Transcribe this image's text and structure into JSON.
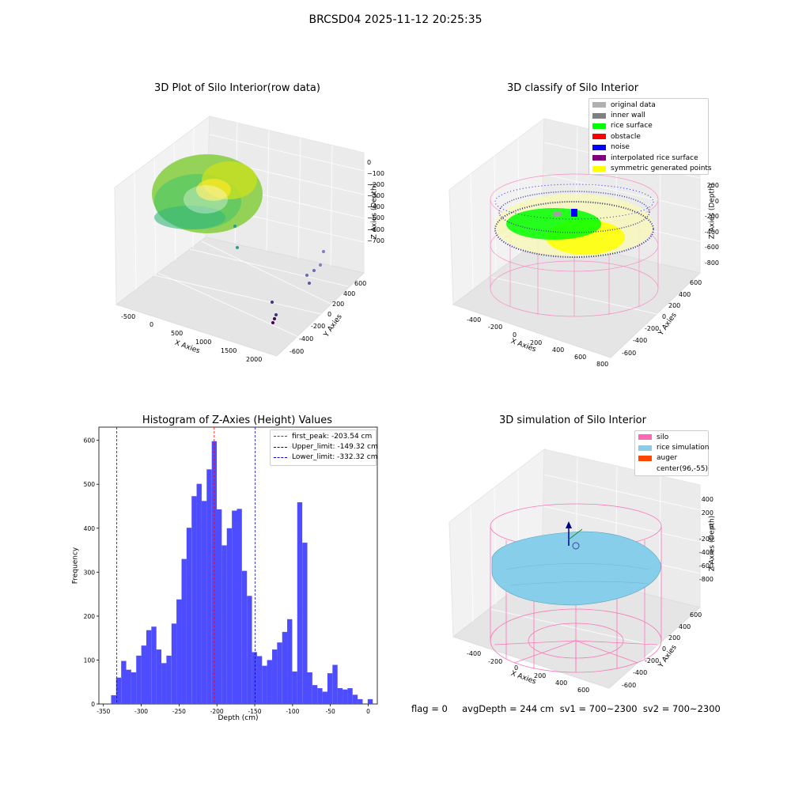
{
  "figure": {
    "title": "BRCSD04 2025-11-12 20:25:35",
    "status_text": "flag = 0     avgDepth = 244 cm  sv1 = 700~2300  sv2 = 700~2300"
  },
  "icons": [
    "legend-swatch"
  ],
  "colors": {
    "hist_bar": "#4d4dff",
    "peak_line": "#ff0000",
    "limit_line": "#0000cc",
    "silo": "#ff69b4",
    "rice": "#87ceeb",
    "auger": "#ff4500"
  },
  "chart_data": [
    {
      "type": "scatter",
      "title": "3D Plot of Silo Interior(row data)",
      "xlabel": "X Axies",
      "ylabel": "Y Axies",
      "zlabel": "Z Axies (Depth)",
      "xticks": [
        "-500",
        "0",
        "500",
        "1000",
        "1500",
        "2000"
      ],
      "yticks": [
        "-600",
        "-400",
        "-200",
        "0",
        "200",
        "400",
        "600"
      ],
      "zticks": [
        "0",
        "−100",
        "−200",
        "−300",
        "−400",
        "−500",
        "−600",
        "−700"
      ],
      "grid": true
    },
    {
      "type": "scatter",
      "title": "3D classify of Silo Interior",
      "xlabel": "X Axies",
      "ylabel": "Y Axies",
      "zlabel": "Z Axies (Depth)",
      "xticks": [
        "-400",
        "-200",
        "0",
        "200",
        "400",
        "600",
        "800"
      ],
      "yticks": [
        "-600",
        "-400",
        "-200",
        "0",
        "200",
        "400",
        "600"
      ],
      "zticks": [
        "200",
        "0",
        "-200",
        "-400",
        "-600",
        "-800"
      ],
      "legend": [
        {
          "label": "original data",
          "color": "#b0b0b0"
        },
        {
          "label": "inner wall",
          "color": "#808080"
        },
        {
          "label": "rice surface",
          "color": "#00ff00"
        },
        {
          "label": "obstacle",
          "color": "#ff0000"
        },
        {
          "label": "noise",
          "color": "#0000ff"
        },
        {
          "label": "interpolated rice surface",
          "color": "#800080"
        },
        {
          "label": "symmetric generated points",
          "color": "#ffff00"
        }
      ],
      "legend_placement": "top-right",
      "grid": true
    },
    {
      "type": "bar",
      "title": "Histogram of Z-Axies (Height) Values",
      "xlabel": "Depth (cm)",
      "ylabel": "Frequency",
      "xlim": [
        -356,
        12
      ],
      "ylim": [
        0,
        630
      ],
      "xticks": [
        -350,
        -300,
        -250,
        -200,
        -150,
        -100,
        -50,
        0
      ],
      "yticks": [
        0,
        100,
        200,
        300,
        400,
        500,
        600
      ],
      "bin_width": 6.65,
      "bins": [
        {
          "x": -336.5,
          "v": 20
        },
        {
          "x": -329.9,
          "v": 60
        },
        {
          "x": -323.2,
          "v": 98
        },
        {
          "x": -316.6,
          "v": 78
        },
        {
          "x": -309.9,
          "v": 72
        },
        {
          "x": -303.3,
          "v": 110
        },
        {
          "x": -296.6,
          "v": 133
        },
        {
          "x": -290.0,
          "v": 168
        },
        {
          "x": -283.3,
          "v": 176
        },
        {
          "x": -276.7,
          "v": 124
        },
        {
          "x": -270.0,
          "v": 93
        },
        {
          "x": -263.4,
          "v": 110
        },
        {
          "x": -256.7,
          "v": 183
        },
        {
          "x": -250.1,
          "v": 238
        },
        {
          "x": -243.4,
          "v": 330
        },
        {
          "x": -236.8,
          "v": 401
        },
        {
          "x": -230.1,
          "v": 473
        },
        {
          "x": -223.5,
          "v": 501
        },
        {
          "x": -216.8,
          "v": 462
        },
        {
          "x": -210.2,
          "v": 534
        },
        {
          "x": -203.5,
          "v": 598
        },
        {
          "x": -196.9,
          "v": 443
        },
        {
          "x": -190.2,
          "v": 361
        },
        {
          "x": -183.6,
          "v": 400
        },
        {
          "x": -176.9,
          "v": 440
        },
        {
          "x": -170.3,
          "v": 444
        },
        {
          "x": -163.6,
          "v": 303
        },
        {
          "x": -157.0,
          "v": 246
        },
        {
          "x": -150.3,
          "v": 118
        },
        {
          "x": -143.7,
          "v": 109
        },
        {
          "x": -137.0,
          "v": 87
        },
        {
          "x": -130.4,
          "v": 100
        },
        {
          "x": -123.7,
          "v": 124
        },
        {
          "x": -117.1,
          "v": 140
        },
        {
          "x": -110.4,
          "v": 164
        },
        {
          "x": -103.8,
          "v": 193
        },
        {
          "x": -97.1,
          "v": 74
        },
        {
          "x": -90.5,
          "v": 459
        },
        {
          "x": -83.8,
          "v": 367
        },
        {
          "x": -77.2,
          "v": 72
        },
        {
          "x": -70.5,
          "v": 43
        },
        {
          "x": -63.9,
          "v": 36
        },
        {
          "x": -57.2,
          "v": 28
        },
        {
          "x": -50.6,
          "v": 70
        },
        {
          "x": -43.9,
          "v": 89
        },
        {
          "x": -37.3,
          "v": 36
        },
        {
          "x": -30.6,
          "v": 33
        },
        {
          "x": -24.0,
          "v": 36
        },
        {
          "x": -17.3,
          "v": 21
        },
        {
          "x": -10.7,
          "v": 11
        },
        {
          "x": -4.0,
          "v": 0
        },
        {
          "x": 2.6,
          "v": 11
        }
      ],
      "vlines": [
        {
          "x": -203.54,
          "label": "first_peak: -203.54 cm",
          "color": "#ff0000"
        },
        {
          "x": -149.32,
          "label": "Upper_limit: -149.32 cm",
          "color": "#0000cc"
        },
        {
          "x": -332.32,
          "label": "Lower_limit: -332.32 cm",
          "color": "#0000cc"
        }
      ],
      "legend_placement": "top-right"
    },
    {
      "type": "scatter",
      "title": "3D simulation of Silo Interior",
      "xlabel": "X Axies",
      "ylabel": "Y Axies",
      "zlabel": "Z Axies (Depth)",
      "xticks": [
        "-400",
        "-200",
        "0",
        "200",
        "400",
        "600"
      ],
      "yticks": [
        "-600",
        "-400",
        "-200",
        "0",
        "200",
        "400",
        "600"
      ],
      "zticks": [
        "400",
        "200",
        "0",
        "-200",
        "-400",
        "-600",
        "-800"
      ],
      "legend": [
        {
          "label": "silo",
          "color": "#ff69b4"
        },
        {
          "label": "rice simulation",
          "color": "#87ceeb"
        },
        {
          "label": "auger",
          "color": "#ff4500"
        },
        {
          "label": "center(96,-55)",
          "color": ""
        }
      ],
      "legend_placement": "top-right",
      "grid": true
    }
  ]
}
